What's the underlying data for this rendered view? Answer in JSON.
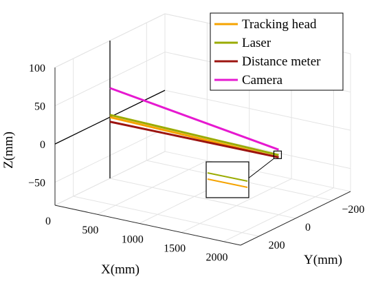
{
  "chart_data": {
    "type": "line",
    "projection": "3d",
    "title": "",
    "xlabel": "X(mm)",
    "ylabel": "Y(mm)",
    "zlabel": "Z(mm)",
    "xlim": [
      0,
      2200
    ],
    "ylim": [
      -300,
      300
    ],
    "zlim": [
      -80,
      100
    ],
    "xticks": [
      0,
      500,
      1000,
      1500,
      2000
    ],
    "yticks": [
      -200,
      0,
      200
    ],
    "zticks": [
      -50,
      0,
      50,
      100
    ],
    "xtick_labels": [
      "0",
      "500",
      "1000",
      "1500",
      "2000"
    ],
    "ytick_labels": [
      "−200",
      "0",
      "200"
    ],
    "ztick_labels": [
      "−50",
      "0",
      "50",
      "100"
    ],
    "grid": true,
    "legend_position": "top-right",
    "series": [
      {
        "name": "Tracking head",
        "color": "#f5a300",
        "x": [
          0,
          2000
        ],
        "y": [
          0,
          0
        ],
        "z": [
          0,
          -5
        ]
      },
      {
        "name": "Laser",
        "color": "#9aab00",
        "x": [
          0,
          2000
        ],
        "y": [
          0,
          0
        ],
        "z": [
          3,
          -2
        ]
      },
      {
        "name": "Distance meter",
        "color": "#9c1410",
        "x": [
          0,
          2000
        ],
        "y": [
          0,
          0
        ],
        "z": [
          -6,
          -5
        ]
      },
      {
        "name": "Camera",
        "color": "#e619d0",
        "x": [
          0,
          2000
        ],
        "y": [
          0,
          0
        ],
        "z": [
          38,
          5
        ]
      }
    ],
    "vertical_line": {
      "x": 0,
      "y": 0,
      "z": [
        -80,
        100
      ]
    },
    "horizontal_line": {
      "x": 0,
      "z": 0,
      "y": [
        -300,
        300
      ]
    },
    "inset": {
      "description_free": true,
      "series_indices": [
        1,
        0
      ]
    }
  }
}
